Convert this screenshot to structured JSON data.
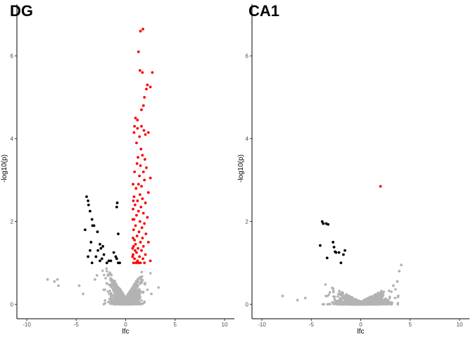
{
  "chart_data": [
    {
      "type": "scatter",
      "title": "DG",
      "xlabel": "lfc",
      "ylabel": "-log10(p)",
      "xlim": [
        -11,
        11
      ],
      "ylim": [
        -0.35,
        7.25
      ],
      "xticks": [
        -10,
        -5,
        0,
        5,
        10
      ],
      "yticks": [
        0,
        2,
        4,
        6
      ],
      "grid": false,
      "legend": "none",
      "colors": {
        "up": "#ff0000",
        "down": "#000000",
        "ns": "#b3b3b3"
      },
      "background_cloud": {
        "color": "#b3b3b3",
        "n": 1500,
        "center_lfc": 0,
        "spread_lfc": 1.4,
        "max_abs_lfc": 3.5,
        "max_p": 0.98,
        "description": "non-significant genes forming a V shape around lfc 0"
      },
      "series": [
        {
          "color": "#ff0000",
          "points": [
            [
              1.75,
              6.65
            ],
            [
              1.5,
              6.6
            ],
            [
              1.3,
              6.1
            ],
            [
              2.7,
              5.6
            ],
            [
              1.45,
              5.65
            ],
            [
              1.7,
              5.6
            ],
            [
              2.2,
              5.3
            ],
            [
              2.5,
              5.25
            ],
            [
              2.1,
              5.2
            ],
            [
              1.9,
              5.0
            ],
            [
              1.8,
              4.8
            ],
            [
              1.6,
              4.7
            ],
            [
              1.0,
              4.5
            ],
            [
              1.2,
              4.45
            ],
            [
              0.9,
              4.3
            ],
            [
              1.6,
              4.3
            ],
            [
              1.2,
              4.25
            ],
            [
              1.85,
              4.2
            ],
            [
              2.3,
              4.15
            ],
            [
              0.85,
              4.15
            ],
            [
              2.0,
              4.1
            ],
            [
              1.4,
              4.05
            ],
            [
              1.1,
              3.9
            ],
            [
              1.55,
              3.75
            ],
            [
              1.7,
              3.6
            ],
            [
              1.25,
              3.55
            ],
            [
              1.95,
              3.5
            ],
            [
              1.15,
              3.4
            ],
            [
              1.5,
              3.35
            ],
            [
              2.1,
              3.3
            ],
            [
              1.8,
              3.2
            ],
            [
              0.9,
              3.2
            ],
            [
              1.4,
              3.1
            ],
            [
              2.5,
              3.05
            ],
            [
              1.9,
              3.0
            ],
            [
              1.3,
              2.9
            ],
            [
              0.75,
              2.9
            ],
            [
              1.6,
              2.85
            ],
            [
              1.05,
              2.8
            ],
            [
              2.3,
              2.7
            ],
            [
              1.45,
              2.65
            ],
            [
              0.85,
              2.6
            ],
            [
              1.7,
              2.55
            ],
            [
              1.2,
              2.5
            ],
            [
              2.0,
              2.45
            ],
            [
              0.95,
              2.4
            ],
            [
              1.55,
              2.35
            ],
            [
              0.75,
              2.3
            ],
            [
              1.3,
              2.25
            ],
            [
              1.8,
              2.2
            ],
            [
              1.1,
              2.15
            ],
            [
              2.2,
              2.1
            ],
            [
              0.85,
              2.05
            ],
            [
              1.45,
              2.0
            ],
            [
              1.9,
              1.95
            ],
            [
              1.0,
              1.9
            ],
            [
              1.65,
              1.85
            ],
            [
              0.8,
              1.8
            ],
            [
              1.35,
              1.75
            ],
            [
              2.05,
              1.7
            ],
            [
              1.15,
              1.65
            ],
            [
              1.7,
              1.6
            ],
            [
              0.9,
              1.55
            ],
            [
              1.5,
              1.5
            ],
            [
              2.3,
              1.5
            ],
            [
              1.0,
              1.45
            ],
            [
              1.8,
              1.4
            ],
            [
              0.8,
              1.4
            ],
            [
              1.25,
              1.35
            ],
            [
              0.95,
              1.3
            ],
            [
              1.6,
              1.3
            ],
            [
              1.1,
              1.25
            ],
            [
              2.0,
              1.2
            ],
            [
              0.75,
              1.2
            ],
            [
              1.4,
              1.15
            ],
            [
              1.75,
              1.1
            ],
            [
              0.9,
              1.1
            ],
            [
              1.2,
              1.05
            ],
            [
              2.5,
              1.05
            ],
            [
              1.5,
              1.0
            ],
            [
              0.8,
              1.0
            ],
            [
              1.05,
              1.0
            ],
            [
              1.3,
              1.0
            ],
            [
              1.9,
              1.0
            ],
            [
              0.7,
              1.35
            ],
            [
              0.7,
              1.15
            ],
            [
              0.75,
              1.6
            ],
            [
              0.72,
              2.05
            ],
            [
              0.78,
              2.5
            ]
          ]
        },
        {
          "color": "#000000",
          "points": [
            [
              -3.95,
              2.6
            ],
            [
              -3.8,
              2.5
            ],
            [
              -3.75,
              2.4
            ],
            [
              -3.6,
              2.25
            ],
            [
              -3.4,
              2.05
            ],
            [
              -3.2,
              1.9
            ],
            [
              -4.1,
              1.8
            ],
            [
              -3.35,
              1.9
            ],
            [
              -2.85,
              1.75
            ],
            [
              -0.85,
              2.45
            ],
            [
              -0.9,
              2.35
            ],
            [
              -3.5,
              1.5
            ],
            [
              -2.6,
              1.45
            ],
            [
              -2.3,
              1.4
            ],
            [
              -3.6,
              1.3
            ],
            [
              -2.5,
              1.35
            ],
            [
              -0.75,
              1.7
            ],
            [
              -2.8,
              1.3
            ],
            [
              -3.8,
              1.15
            ],
            [
              -3.0,
              1.15
            ],
            [
              -2.2,
              1.2
            ],
            [
              -2.4,
              1.1
            ],
            [
              -1.2,
              1.25
            ],
            [
              -1.0,
              1.15
            ],
            [
              -0.9,
              1.1
            ],
            [
              -2.6,
              1.05
            ],
            [
              -1.5,
              1.05
            ],
            [
              -3.4,
              1.0
            ],
            [
              -1.7,
              1.05
            ],
            [
              -0.75,
              1.0
            ],
            [
              -0.6,
              1.0
            ],
            [
              -1.9,
              1.0
            ]
          ]
        },
        {
          "color": "#b3b3b3",
          "points": [
            [
              -7.9,
              0.6
            ],
            [
              -7.2,
              0.55
            ],
            [
              -6.8,
              0.45
            ],
            [
              -6.9,
              0.6
            ],
            [
              -4.7,
              0.45
            ],
            [
              -4.3,
              0.25
            ],
            [
              -3.1,
              0.6
            ],
            [
              -2.9,
              0.7
            ],
            [
              2.6,
              0.25
            ],
            [
              2.2,
              0.35
            ]
          ]
        }
      ]
    },
    {
      "type": "scatter",
      "title": "CA1",
      "xlabel": "lfc",
      "ylabel": "-log10(p)",
      "xlim": [
        -11,
        11
      ],
      "ylim": [
        -0.35,
        7.25
      ],
      "xticks": [
        -10,
        -5,
        0,
        5,
        10
      ],
      "yticks": [
        0,
        2,
        4,
        6
      ],
      "grid": false,
      "legend": "none",
      "colors": {
        "up": "#ff0000",
        "down": "#000000",
        "ns": "#b3b3b3"
      },
      "background_cloud": {
        "color": "#b3b3b3",
        "n": 1500,
        "center_lfc": 0,
        "spread_lfc": 2.3,
        "max_abs_lfc": 4.3,
        "max_p": 0.6,
        "description": "non-significant genes spread wide along lfc near p 0"
      },
      "series": [
        {
          "color": "#ff0000",
          "points": [
            [
              2.0,
              2.85
            ]
          ]
        },
        {
          "color": "#000000",
          "points": [
            [
              -3.9,
              2.0
            ],
            [
              -3.8,
              1.95
            ],
            [
              -3.5,
              1.95
            ],
            [
              -3.3,
              1.93
            ],
            [
              -4.1,
              1.42
            ],
            [
              -2.8,
              1.5
            ],
            [
              -2.7,
              1.38
            ],
            [
              -2.5,
              1.25
            ],
            [
              -2.2,
              1.25
            ],
            [
              -1.6,
              1.3
            ],
            [
              -2.6,
              1.27
            ],
            [
              -1.75,
              1.2
            ],
            [
              -3.4,
              1.12
            ],
            [
              -2.0,
              1.0
            ]
          ]
        },
        {
          "color": "#b3b3b3",
          "points": [
            [
              -7.9,
              0.2
            ],
            [
              -6.4,
              0.1
            ],
            [
              -5.6,
              0.15
            ],
            [
              3.9,
              0.8
            ],
            [
              4.1,
              0.95
            ],
            [
              3.7,
              0.55
            ],
            [
              3.3,
              0.45
            ]
          ]
        }
      ]
    }
  ]
}
